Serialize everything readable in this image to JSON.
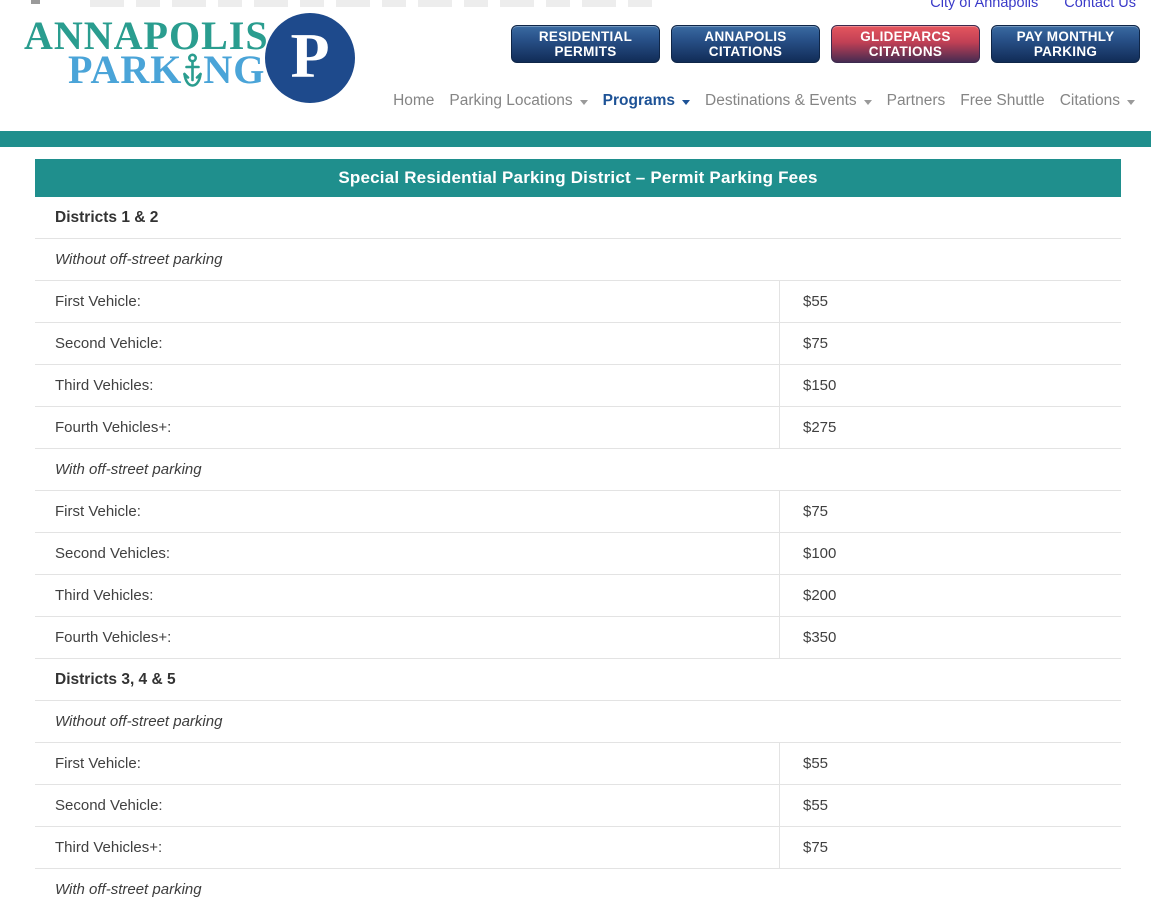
{
  "top_links": [
    {
      "label": "City of Annapolis"
    },
    {
      "label": "Contact Us"
    }
  ],
  "logo": {
    "line1": "ANNAPOLIS",
    "line2_prefix": "PARK",
    "line2_suffix": "NG",
    "anchor_icon": "anchor-replaces-letter-i",
    "badge_letter": "P",
    "teal": "#2a9d8f",
    "light_blue": "#4aa4d8",
    "badge_navy": "#1e4a8c"
  },
  "action_buttons": [
    {
      "line1": "RESIDENTIAL",
      "line2": "PERMITS",
      "style": "navy"
    },
    {
      "line1": "ANNAPOLIS",
      "line2": "CITATIONS",
      "style": "navy"
    },
    {
      "line1": "GLIDEPARCS",
      "line2": "CITATIONS",
      "style": "red"
    },
    {
      "line1": "PAY MONTHLY",
      "line2": "PARKING",
      "style": "navy"
    }
  ],
  "nav": {
    "items": [
      {
        "label": "Home",
        "caret": false,
        "active": false
      },
      {
        "label": "Parking Locations",
        "caret": true,
        "active": false
      },
      {
        "label": "Programs",
        "caret": true,
        "active": true
      },
      {
        "label": "Destinations & Events",
        "caret": true,
        "active": false
      },
      {
        "label": "Partners",
        "caret": false,
        "active": false
      },
      {
        "label": "Free Shuttle",
        "caret": false,
        "active": false
      },
      {
        "label": "Citations",
        "caret": true,
        "active": false
      }
    ],
    "active_color": "#1d5296",
    "default_color": "#858585"
  },
  "theme": {
    "teal": "#1f8f8d",
    "row_border": "#e3e3e3",
    "link_blue": "#3a3ac8"
  },
  "table": {
    "title": "Special Residential Parking District – Permit Parking Fees",
    "rows": [
      {
        "type": "section",
        "label": "Districts 1 & 2",
        "price": ""
      },
      {
        "type": "subsection",
        "label": "Without off-street parking",
        "price": ""
      },
      {
        "type": "fee",
        "label": "First Vehicle:",
        "price": "$55"
      },
      {
        "type": "fee",
        "label": "Second Vehicle:",
        "price": "$75"
      },
      {
        "type": "fee",
        "label": "Third Vehicles:",
        "price": "$150"
      },
      {
        "type": "fee",
        "label": "Fourth Vehicles+:",
        "price": "$275"
      },
      {
        "type": "subsection",
        "label": "With off-street parking",
        "price": ""
      },
      {
        "type": "fee",
        "label": "First Vehicle:",
        "price": "$75"
      },
      {
        "type": "fee",
        "label": "Second Vehicles:",
        "price": "$100"
      },
      {
        "type": "fee",
        "label": "Third Vehicles:",
        "price": "$200"
      },
      {
        "type": "fee",
        "label": "Fourth Vehicles+:",
        "price": "$350"
      },
      {
        "type": "section",
        "label": "Districts 3, 4 & 5",
        "price": ""
      },
      {
        "type": "subsection",
        "label": "Without off-street parking",
        "price": ""
      },
      {
        "type": "fee",
        "label": "First Vehicle:",
        "price": "$55"
      },
      {
        "type": "fee",
        "label": "Second Vehicle:",
        "price": "$55"
      },
      {
        "type": "fee",
        "label": "Third Vehicles+:",
        "price": "$75"
      },
      {
        "type": "subsection",
        "label": "With off-street parking",
        "price": ""
      }
    ]
  }
}
